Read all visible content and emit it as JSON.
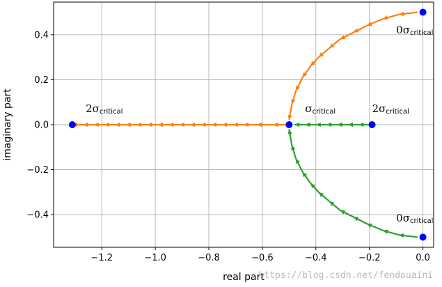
{
  "chart_data": {
    "type": "line",
    "title": "",
    "xlabel": "real part",
    "ylabel": "imaginary part",
    "xlim": [
      -1.38,
      0.04
    ],
    "ylim": [
      -0.545,
      0.545
    ],
    "xticks": [
      -1.2,
      -1.0,
      -0.8,
      -0.6,
      -0.4,
      -0.2,
      0.0
    ],
    "yticks": [
      -0.4,
      -0.2,
      0.0,
      0.2,
      0.4
    ],
    "xtick_labels": [
      "−1.2",
      "−1.0",
      "−0.8",
      "−0.6",
      "−0.4",
      "−0.2",
      "0.0"
    ],
    "ytick_labels": [
      "−0.4",
      "−0.2",
      "0.0",
      "0.2",
      "0.4"
    ],
    "grid": true,
    "series": [
      {
        "color": "#ff7f0e",
        "arrows": [
          [
            -0.02,
            0.5,
            -0.09,
            0.49
          ],
          [
            -0.09,
            0.49,
            -0.15,
            0.47
          ],
          [
            -0.15,
            0.47,
            -0.21,
            0.44
          ],
          [
            -0.21,
            0.44,
            -0.26,
            0.41
          ],
          [
            -0.26,
            0.41,
            -0.31,
            0.38
          ],
          [
            -0.31,
            0.38,
            -0.35,
            0.34
          ],
          [
            -0.35,
            0.34,
            -0.39,
            0.3
          ],
          [
            -0.39,
            0.3,
            -0.42,
            0.26
          ],
          [
            -0.42,
            0.26,
            -0.45,
            0.21
          ],
          [
            -0.45,
            0.21,
            -0.475,
            0.15
          ],
          [
            -0.475,
            0.15,
            -0.49,
            0.09
          ],
          [
            -0.49,
            0.09,
            -0.5,
            0.02
          ],
          [
            -0.5,
            0.0,
            -0.56,
            0.0
          ],
          [
            -0.56,
            0.0,
            -0.62,
            0.0
          ],
          [
            -0.62,
            0.0,
            -0.67,
            0.0
          ],
          [
            -0.67,
            0.0,
            -0.71,
            0.0
          ],
          [
            -0.71,
            0.0,
            -0.75,
            0.0
          ],
          [
            -0.75,
            0.0,
            -0.79,
            0.0
          ],
          [
            -0.79,
            0.0,
            -0.83,
            0.0
          ],
          [
            -0.83,
            0.0,
            -0.87,
            0.0
          ],
          [
            -0.87,
            0.0,
            -0.91,
            0.0
          ],
          [
            -0.91,
            0.0,
            -0.95,
            0.0
          ],
          [
            -0.95,
            0.0,
            -0.99,
            0.0
          ],
          [
            -0.99,
            0.0,
            -1.03,
            0.0
          ],
          [
            -1.03,
            0.0,
            -1.07,
            0.0
          ],
          [
            -1.07,
            0.0,
            -1.11,
            0.0
          ],
          [
            -1.11,
            0.0,
            -1.15,
            0.0
          ],
          [
            -1.15,
            0.0,
            -1.19,
            0.0
          ],
          [
            -1.19,
            0.0,
            -1.23,
            0.0
          ],
          [
            -1.23,
            0.0,
            -1.27,
            0.0
          ],
          [
            -1.27,
            0.0,
            -1.31,
            0.0
          ]
        ]
      },
      {
        "color": "#2ca02c",
        "arrows": [
          [
            -0.02,
            -0.5,
            -0.09,
            -0.49
          ],
          [
            -0.09,
            -0.49,
            -0.15,
            -0.47
          ],
          [
            -0.15,
            -0.47,
            -0.21,
            -0.44
          ],
          [
            -0.21,
            -0.44,
            -0.26,
            -0.41
          ],
          [
            -0.26,
            -0.41,
            -0.31,
            -0.38
          ],
          [
            -0.31,
            -0.38,
            -0.35,
            -0.34
          ],
          [
            -0.35,
            -0.34,
            -0.39,
            -0.3
          ],
          [
            -0.39,
            -0.3,
            -0.42,
            -0.26
          ],
          [
            -0.42,
            -0.26,
            -0.45,
            -0.21
          ],
          [
            -0.45,
            -0.21,
            -0.475,
            -0.15
          ],
          [
            -0.475,
            -0.15,
            -0.49,
            -0.09
          ],
          [
            -0.49,
            -0.09,
            -0.5,
            -0.02
          ],
          [
            -0.2,
            0.0,
            -0.24,
            0.0
          ],
          [
            -0.24,
            0.0,
            -0.28,
            0.0
          ],
          [
            -0.28,
            0.0,
            -0.32,
            0.0
          ],
          [
            -0.32,
            0.0,
            -0.36,
            0.0
          ],
          [
            -0.36,
            0.0,
            -0.4,
            0.0
          ],
          [
            -0.4,
            0.0,
            -0.44,
            0.0
          ],
          [
            -0.44,
            0.0,
            -0.48,
            0.0
          ]
        ]
      }
    ],
    "points": [
      {
        "x": 0.0,
        "y": 0.5
      },
      {
        "x": 0.0,
        "y": -0.5
      },
      {
        "x": -0.5,
        "y": 0.0
      },
      {
        "x": -0.19,
        "y": 0.0
      },
      {
        "x": -1.31,
        "y": 0.0
      }
    ],
    "point_color": "#0000ff",
    "annotations": [
      {
        "x": -0.1,
        "y": 0.405,
        "prefix": "0σ",
        "sub": "critical"
      },
      {
        "x": -0.1,
        "y": -0.43,
        "prefix": "0σ",
        "sub": "critical"
      },
      {
        "x": -0.44,
        "y": 0.055,
        "prefix": "σ",
        "sub": "critical"
      },
      {
        "x": -0.19,
        "y": 0.055,
        "prefix": "2σ",
        "sub": "critical"
      },
      {
        "x": -1.26,
        "y": 0.055,
        "prefix": "2σ",
        "sub": "critical"
      }
    ]
  },
  "watermark": "https://blog.csdn.net/fendouaini"
}
